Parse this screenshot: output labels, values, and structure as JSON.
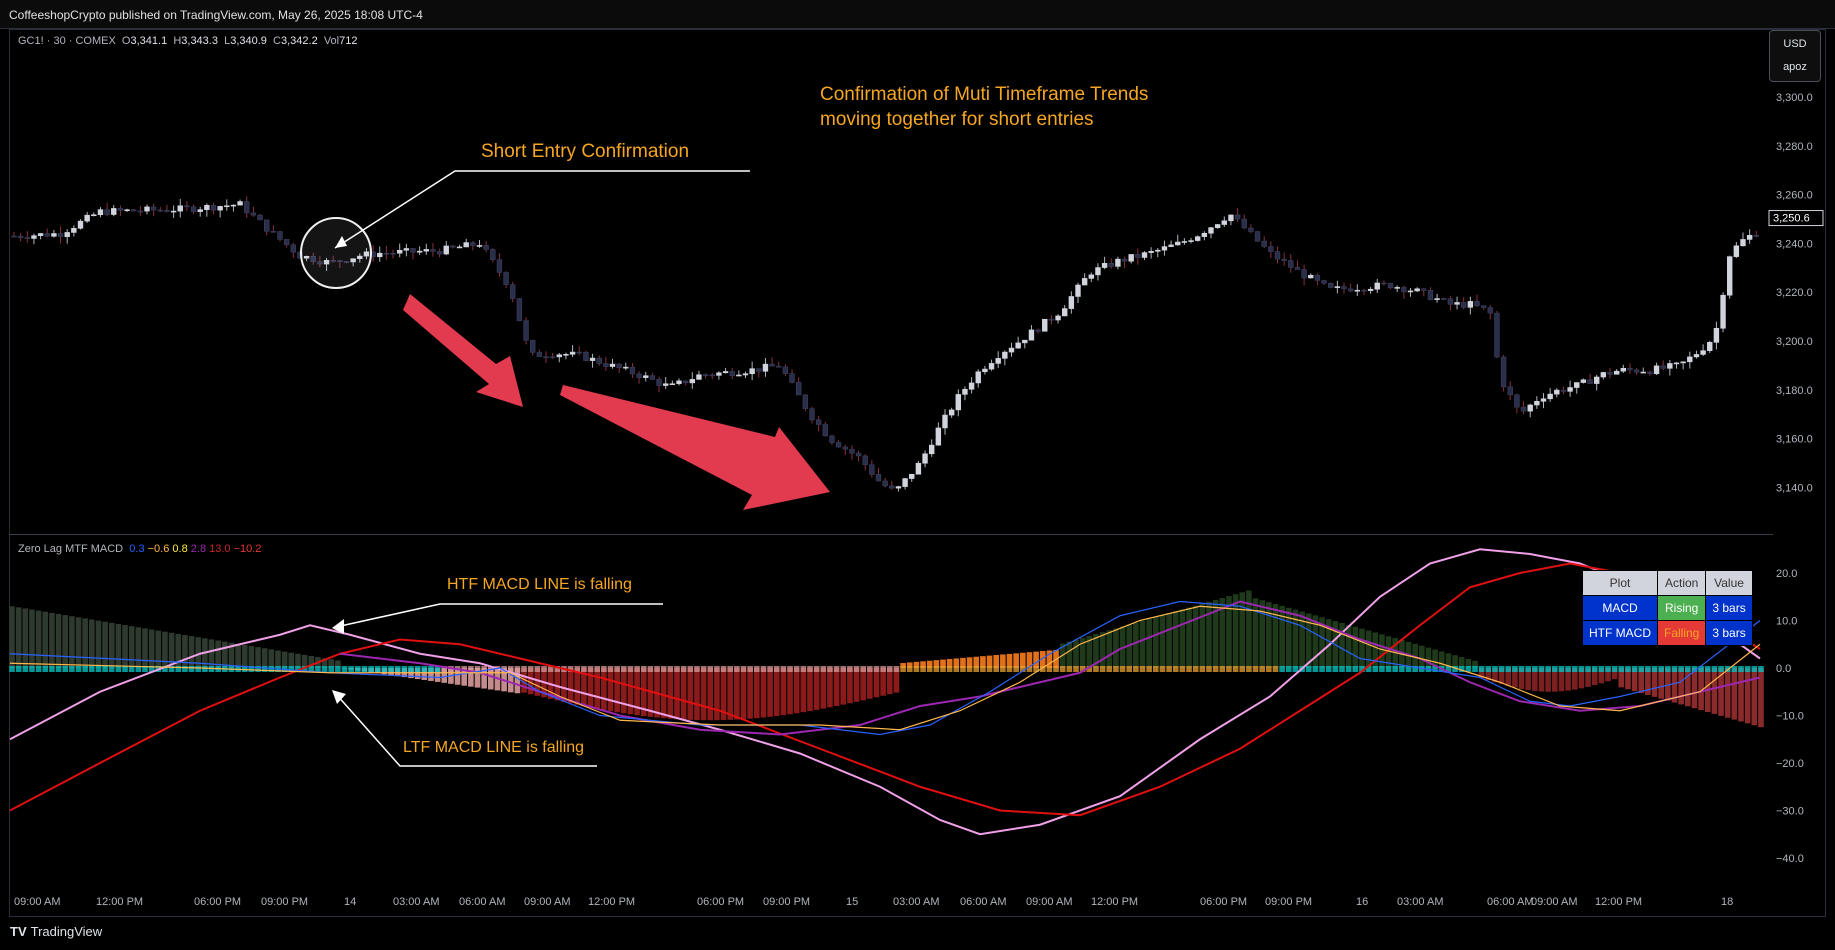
{
  "header": {
    "published": "CoffeeshopCrypto published on TradingView.com, May 26, 2025 18:08 UTC-4"
  },
  "symbol": {
    "name": "GC1! · 30 · COMEX",
    "o_label": "O",
    "o": "3,341.1",
    "h_label": "H",
    "h": "3,343.3",
    "l_label": "L",
    "l": "3,340.9",
    "c_label": "C",
    "c": "3,342.2",
    "vol_label": "Vol",
    "vol": "712"
  },
  "currency": {
    "label": "USD",
    "sub": "apoz"
  },
  "price_axis": {
    "ticks": [
      "3,300.0",
      "3,280.0",
      "3,260.0",
      "3,240.0",
      "3,220.0",
      "3,200.0",
      "3,180.0",
      "3,160.0",
      "3,140.0"
    ],
    "last_price": "3,250.6"
  },
  "indicator": {
    "name": "Zero Lag MTF MACD",
    "values": [
      "0.3",
      "−0.6",
      "0.8",
      "2.8",
      "13.0",
      "−10.2"
    ],
    "colors": [
      "#2962ff",
      "#ffb74d",
      "#ffeb3b",
      "#9c27b0",
      "#c62828",
      "#e53935"
    ]
  },
  "indicator_axis": {
    "ticks": [
      "20.0",
      "10.0",
      "0.0",
      "−10.0",
      "−20.0",
      "−30.0",
      "−40.0"
    ]
  },
  "time_axis": {
    "labels": [
      "09:00 AM",
      "12:00 PM",
      "06:00 PM",
      "09:00 PM",
      "14",
      "03:00 AM",
      "06:00 AM",
      "09:00 AM",
      "12:00 PM",
      "06:00 PM",
      "09:00 PM",
      "15",
      "03:00 AM",
      "06:00 AM",
      "09:00 AM",
      "12:00 PM",
      "06:00 PM",
      "09:00 PM",
      "16",
      "03:00 AM",
      "06:00 AM",
      "09:00 AM",
      "12:00 PM",
      "18"
    ]
  },
  "annotations": {
    "short_entry": "Short Entry Confirmation",
    "confirm_line1": "Confirmation of Muti Timeframe Trends",
    "confirm_line2": "moving together for short entries",
    "htf": "HTF MACD LINE is falling",
    "ltf": "LTF MACD LINE is falling"
  },
  "status_table": {
    "headers": [
      "Plot",
      "Action",
      "Value"
    ],
    "rows": [
      {
        "plot": "MACD",
        "action": "Rising",
        "value": "3 bars"
      },
      {
        "plot": "HTF MACD",
        "action": "Falling",
        "value": "3 bars"
      }
    ]
  },
  "colors": {
    "rising": "#4caf50",
    "falling": "#e53935",
    "row_bg": "#0033cc",
    "header_bg": "#d1d4dc",
    "accent": "#f5a623"
  },
  "footer": {
    "brand": "TradingView"
  }
}
